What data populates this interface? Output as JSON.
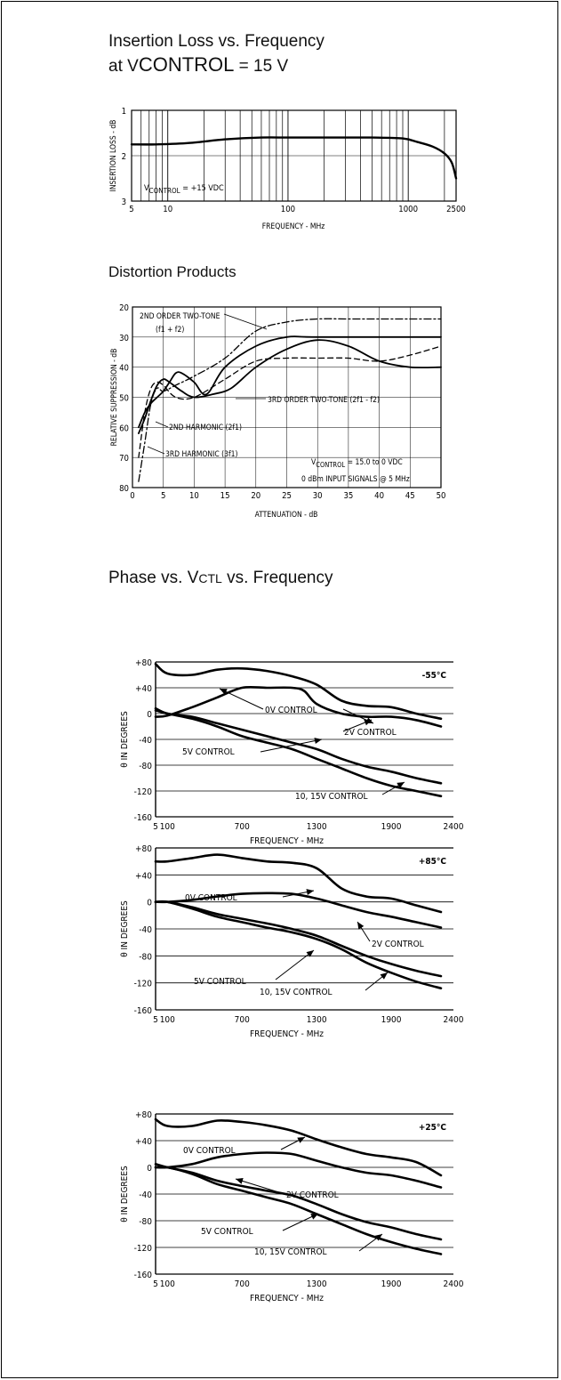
{
  "section_titles": {
    "insertion_loss_line1": "Insertion Loss vs. Frequency",
    "insertion_loss_line2_pre": "at V",
    "insertion_loss_line2_sub": "CONTROL",
    "insertion_loss_line2_post": " = 15 V",
    "distortion": "Distortion Products",
    "phase_pre": "Phase vs. V",
    "phase_sub": "CTL",
    "phase_post": " vs. Frequency"
  },
  "chart_data": [
    {
      "id": "insertion_loss",
      "type": "line",
      "xscale": "log",
      "xlim": [
        5,
        2500
      ],
      "ylim": [
        3,
        1
      ],
      "xlabel": "FREQUENCY - MHz",
      "ylabel": "INSERTION LOSS - dB",
      "xticks": [
        "5",
        "10",
        "100",
        "1000",
        "2500"
      ],
      "yticks": [
        "1",
        "2",
        "3"
      ],
      "annotation": {
        "pre": "V",
        "sub": "CONTROL",
        "post": " = +15 VDC"
      },
      "series": [
        {
          "x": [
            5,
            8,
            15,
            30,
            60,
            100,
            200,
            500,
            900,
            1200,
            1600,
            2000,
            2300,
            2500
          ],
          "y": [
            1.75,
            1.75,
            1.72,
            1.64,
            1.6,
            1.6,
            1.6,
            1.6,
            1.62,
            1.7,
            1.8,
            1.95,
            2.15,
            2.5
          ]
        }
      ]
    },
    {
      "id": "distortion",
      "type": "line",
      "xlim": [
        0,
        50
      ],
      "ylim": [
        80,
        20
      ],
      "xlabel": "ATTENUATION - dB",
      "ylabel": "RELATIVE SUPPRESSION - dB",
      "xticks": [
        "0",
        "5",
        "10",
        "15",
        "20",
        "25",
        "30",
        "35",
        "40",
        "45",
        "50"
      ],
      "yticks": [
        "20",
        "30",
        "40",
        "50",
        "60",
        "70",
        "80"
      ],
      "annotations": {
        "second_order": "2ND ORDER TWO-TONE",
        "second_order_f": "(f1 + f2)",
        "third_order": "3RD ORDER TWO-TONE (2f1 - f2)",
        "second_harm": "2ND HARMONIC (2f1)",
        "third_harm": "3RD HARMONIC (3f1)",
        "vcontrol_pre": "V",
        "vcontrol_sub": "CONTROL",
        "vcontrol_post": " = 15.0 to 0 VDC",
        "input": "0 dBm  INPUT SIGNALS @ 5 MHz"
      },
      "series": [
        {
          "x": [
            1,
            2,
            3,
            4,
            5,
            7,
            10,
            15,
            20,
            25,
            30,
            35,
            40,
            45,
            50
          ],
          "y": [
            78,
            65,
            52,
            47,
            48,
            46,
            43,
            37,
            28,
            25,
            24,
            24,
            24,
            24,
            24
          ]
        },
        {
          "x": [
            1,
            2,
            3,
            4,
            5,
            6,
            8,
            10,
            13,
            16,
            20,
            25,
            30,
            35,
            40,
            45,
            50
          ],
          "y": [
            62,
            57,
            51,
            46,
            44,
            45,
            48,
            50,
            49,
            47,
            40,
            34,
            31,
            33,
            38,
            40,
            40
          ]
        },
        {
          "x": [
            1,
            2,
            3,
            4,
            5,
            6,
            7,
            8,
            10,
            12,
            15,
            20,
            25,
            30,
            50
          ],
          "y": [
            60,
            55,
            52,
            50,
            48,
            45,
            42,
            42,
            45,
            49,
            40,
            33,
            30,
            30,
            30
          ]
        },
        {
          "x": [
            1,
            2,
            3,
            4,
            5,
            7,
            10,
            15,
            20,
            25,
            30,
            35,
            40,
            45,
            50
          ],
          "y": [
            70,
            55,
            47,
            45,
            46,
            50,
            50,
            44,
            38,
            37,
            37,
            37,
            38,
            36,
            33
          ]
        }
      ]
    },
    {
      "id": "phase_m55",
      "type": "line",
      "temperature": "-55°C",
      "xlim": [
        5,
        2400
      ],
      "ylim": [
        -160,
        80
      ],
      "xlabel": "FREQUENCY - MHz",
      "ylabel": "θ IN DEGREES",
      "xticks": [
        "5",
        "100",
        "700",
        "1300",
        "1900",
        "2400"
      ],
      "yticks": [
        "+80",
        "+40",
        "0",
        "-40",
        "-80",
        "-120",
        "-160"
      ],
      "labels": {
        "c0": "0V CONTROL",
        "c2": "2V CONTROL",
        "c5": "5V CONTROL",
        "c10": "10, 15V CONTROL"
      },
      "series": [
        {
          "name": "0V CONTROL",
          "x": [
            5,
            100,
            300,
            500,
            700,
            900,
            1100,
            1300,
            1500,
            1700,
            1900,
            2100,
            2300
          ],
          "y": [
            77,
            62,
            60,
            68,
            70,
            66,
            58,
            45,
            20,
            12,
            10,
            0,
            -8
          ]
        },
        {
          "name": "2V CONTROL",
          "x": [
            5,
            100,
            300,
            500,
            700,
            900,
            1100,
            1200,
            1300,
            1500,
            1700,
            1900,
            2100,
            2300
          ],
          "y": [
            -5,
            -3,
            10,
            25,
            40,
            40,
            40,
            35,
            15,
            0,
            -5,
            -5,
            -10,
            -20
          ]
        },
        {
          "name": "5V CONTROL",
          "x": [
            5,
            100,
            300,
            500,
            700,
            900,
            1100,
            1300,
            1500,
            1700,
            1900,
            2100,
            2300
          ],
          "y": [
            8,
            0,
            -5,
            -15,
            -25,
            -35,
            -45,
            -55,
            -70,
            -82,
            -90,
            -100,
            -108
          ]
        },
        {
          "name": "10, 15V CONTROL",
          "x": [
            5,
            100,
            300,
            500,
            700,
            900,
            1100,
            1300,
            1500,
            1700,
            1900,
            2100,
            2300
          ],
          "y": [
            5,
            0,
            -8,
            -20,
            -35,
            -45,
            -55,
            -70,
            -85,
            -100,
            -112,
            -120,
            -128
          ]
        }
      ]
    },
    {
      "id": "phase_p85",
      "type": "line",
      "temperature": "+85°C",
      "xlim": [
        5,
        2400
      ],
      "ylim": [
        -160,
        80
      ],
      "xlabel": "FREQUENCY - MHz",
      "ylabel": "θ IN DEGREES",
      "xticks": [
        "5",
        "100",
        "700",
        "1300",
        "1900",
        "2400"
      ],
      "yticks": [
        "+80",
        "+40",
        "0",
        "-40",
        "-80",
        "-120",
        "-160"
      ],
      "labels": {
        "c0": "0V CONTROL",
        "c2": "2V CONTROL",
        "c5": "5V CONTROL",
        "c10": "10, 15V CONTROL"
      },
      "series": [
        {
          "name": "0V CONTROL",
          "x": [
            5,
            100,
            300,
            500,
            700,
            900,
            1100,
            1300,
            1500,
            1700,
            1900,
            2100,
            2300
          ],
          "y": [
            60,
            60,
            65,
            70,
            65,
            60,
            58,
            50,
            20,
            8,
            5,
            -5,
            -15
          ]
        },
        {
          "name": "2V CONTROL",
          "x": [
            5,
            100,
            300,
            500,
            700,
            900,
            1100,
            1300,
            1500,
            1700,
            1900,
            2100,
            2300
          ],
          "y": [
            0,
            0,
            3,
            8,
            12,
            13,
            12,
            5,
            -5,
            -15,
            -22,
            -30,
            -38
          ]
        },
        {
          "name": "5V CONTROL",
          "x": [
            5,
            100,
            300,
            500,
            700,
            900,
            1100,
            1300,
            1500,
            1700,
            1900,
            2100,
            2300
          ],
          "y": [
            0,
            0,
            -8,
            -18,
            -25,
            -32,
            -40,
            -50,
            -65,
            -80,
            -92,
            -102,
            -110
          ]
        },
        {
          "name": "10, 15V CONTROL",
          "x": [
            5,
            100,
            300,
            500,
            700,
            900,
            1100,
            1300,
            1500,
            1700,
            1900,
            2100,
            2300
          ],
          "y": [
            0,
            0,
            -10,
            -22,
            -30,
            -38,
            -45,
            -55,
            -70,
            -90,
            -105,
            -118,
            -128
          ]
        }
      ]
    },
    {
      "id": "phase_p25",
      "type": "line",
      "temperature": "+25°C",
      "xlim": [
        5,
        2400
      ],
      "ylim": [
        -160,
        80
      ],
      "xlabel": "FREQUENCY - MHz",
      "ylabel": "θ IN DEGREES",
      "xticks": [
        "5",
        "100",
        "700",
        "1300",
        "1900",
        "2400"
      ],
      "yticks": [
        "+80",
        "+40",
        "0",
        "-40",
        "-80",
        "-120",
        "-160"
      ],
      "labels": {
        "c0": "0V CONTROL",
        "c2": "2V CONTROL",
        "c5": "5V CONTROL",
        "c10": "10, 15V CONTROL"
      },
      "series": [
        {
          "name": "0V CONTROL",
          "x": [
            5,
            100,
            300,
            500,
            700,
            900,
            1100,
            1300,
            1500,
            1700,
            1900,
            2100,
            2300
          ],
          "y": [
            72,
            62,
            62,
            70,
            68,
            63,
            55,
            42,
            30,
            20,
            15,
            8,
            -12
          ]
        },
        {
          "name": "2V CONTROL",
          "x": [
            5,
            100,
            300,
            500,
            700,
            900,
            1100,
            1300,
            1500,
            1700,
            1900,
            2100,
            2300
          ],
          "y": [
            0,
            0,
            5,
            15,
            20,
            22,
            20,
            10,
            0,
            -8,
            -12,
            -20,
            -30
          ]
        },
        {
          "name": "5V CONTROL",
          "x": [
            5,
            100,
            300,
            500,
            700,
            900,
            1100,
            1300,
            1500,
            1700,
            1900,
            2100,
            2300
          ],
          "y": [
            5,
            0,
            -8,
            -20,
            -28,
            -35,
            -42,
            -55,
            -70,
            -82,
            -90,
            -100,
            -108
          ]
        },
        {
          "name": "10, 15V CONTROL",
          "x": [
            5,
            100,
            300,
            500,
            700,
            900,
            1100,
            1300,
            1500,
            1700,
            1900,
            2100,
            2300
          ],
          "y": [
            0,
            0,
            -10,
            -25,
            -35,
            -45,
            -55,
            -70,
            -85,
            -100,
            -112,
            -122,
            -130
          ]
        }
      ]
    }
  ]
}
